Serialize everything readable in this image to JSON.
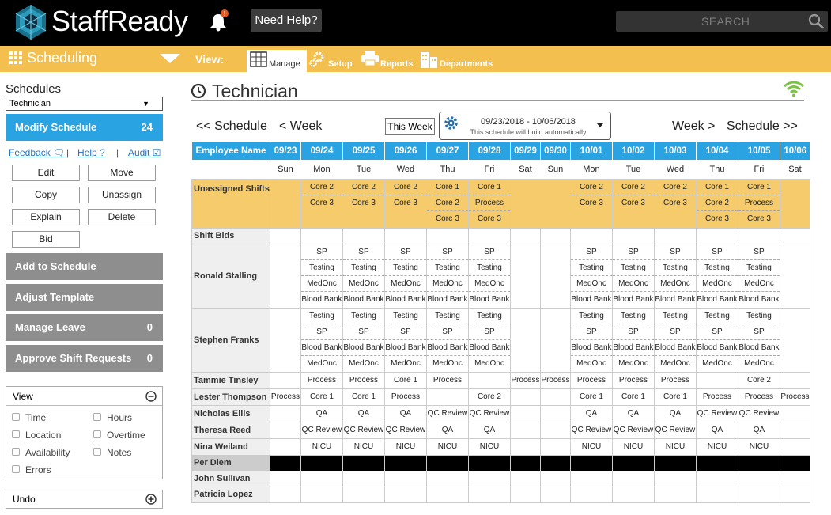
{
  "topbar": {
    "brand": "StaffReady",
    "help_label": "Need Help?",
    "search_placeholder": "SEARCH"
  },
  "nav": {
    "section_title": "Scheduling",
    "view_label": "View:",
    "tabs": [
      {
        "label": "Manage"
      },
      {
        "label": "Setup"
      },
      {
        "label": "Reports"
      },
      {
        "label": "Departments"
      }
    ]
  },
  "sidebar": {
    "title": "Schedules",
    "selected_schedule": "Technician",
    "modify": {
      "label": "Modify Schedule",
      "count": "24"
    },
    "links": {
      "feedback": "Feedback",
      "help": "Help",
      "audit": "Audit"
    },
    "actions": {
      "edit": "Edit",
      "move": "Move",
      "copy": "Copy",
      "unassign": "Unassign",
      "explain": "Explain",
      "delete": "Delete",
      "bid": "Bid"
    },
    "add_to_schedule": "Add to Schedule",
    "adjust_template": "Adjust Template",
    "manage_leave": {
      "label": "Manage Leave",
      "count": "0"
    },
    "approve_requests": {
      "label": "Approve Shift Requests",
      "count": "0"
    },
    "view_panel": {
      "title": "View",
      "options": [
        "Time",
        "Hours",
        "Location",
        "Overtime",
        "Availability",
        "Notes",
        "Errors"
      ]
    },
    "undo_panel": {
      "title": "Undo"
    }
  },
  "main": {
    "title": "Technician",
    "nav": {
      "prev_schedule": "<< Schedule",
      "prev_week": "< Week",
      "this_week": "This Week",
      "next_week": "Week >",
      "next_schedule": "Schedule >>"
    },
    "date_range": "09/23/2018 - 10/06/2018",
    "date_range_note": "This schedule will build automatically",
    "grid": {
      "name_header": "Employee Name",
      "dates": [
        "09/23",
        "09/24",
        "09/25",
        "09/26",
        "09/27",
        "09/28",
        "09/29",
        "09/30",
        "10/01",
        "10/02",
        "10/03",
        "10/04",
        "10/05",
        "10/06"
      ],
      "days": [
        "Sun",
        "Mon",
        "Tue",
        "Wed",
        "Thu",
        "Fri",
        "Sat",
        "Sun",
        "Mon",
        "Tue",
        "Wed",
        "Thu",
        "Fri",
        "Sat"
      ],
      "rows": [
        {
          "name": "Unassigned Shifts",
          "cells": [
            [],
            [
              "Core 2",
              "Core 3"
            ],
            [
              "Core 2",
              "Core 3"
            ],
            [
              "Core 2",
              "Core 3"
            ],
            [
              "Core 1",
              "Core 2",
              "Core 3"
            ],
            [
              "Core 1",
              "Process",
              "Core 3"
            ],
            [],
            [],
            [
              "Core 2",
              "Core 3"
            ],
            [
              "Core 2",
              "Core 3"
            ],
            [
              "Core 2",
              "Core 3"
            ],
            [
              "Core 1",
              "Core 2",
              "Core 3"
            ],
            [
              "Core 1",
              "Process",
              "Core 3"
            ],
            []
          ]
        },
        {
          "name": "Shift Bids",
          "cells": [
            [],
            [],
            [],
            [],
            [],
            [],
            [],
            [],
            [],
            [],
            [],
            [],
            [],
            []
          ]
        },
        {
          "name": "Ronald Stalling",
          "cells": [
            [],
            [
              "SP",
              "Testing",
              "MedOnc",
              "Blood Bank"
            ],
            [
              "SP",
              "Testing",
              "MedOnc",
              "Blood Bank"
            ],
            [
              "SP",
              "Testing",
              "MedOnc",
              "Blood Bank"
            ],
            [
              "SP",
              "Testing",
              "MedOnc",
              "Blood Bank"
            ],
            [
              "SP",
              "Testing",
              "MedOnc",
              "Blood Bank"
            ],
            [],
            [],
            [
              "SP",
              "Testing",
              "MedOnc",
              "Blood Bank"
            ],
            [
              "SP",
              "Testing",
              "MedOnc",
              "Blood Bank"
            ],
            [
              "SP",
              "Testing",
              "MedOnc",
              "Blood Bank"
            ],
            [
              "SP",
              "Testing",
              "MedOnc",
              "Blood Bank"
            ],
            [
              "SP",
              "Testing",
              "MedOnc",
              "Blood Bank"
            ],
            []
          ]
        },
        {
          "name": "Stephen Franks",
          "cells": [
            [],
            [
              "Testing",
              "SP",
              "Blood Bank",
              "MedOnc"
            ],
            [
              "Testing",
              "SP",
              "Blood Bank",
              "MedOnc"
            ],
            [
              "Testing",
              "SP",
              "Blood Bank",
              "MedOnc"
            ],
            [
              "Testing",
              "SP",
              "Blood Bank",
              "MedOnc"
            ],
            [
              "Testing",
              "SP",
              "Blood Bank",
              "MedOnc"
            ],
            [],
            [],
            [
              "Testing",
              "SP",
              "Blood Bank",
              "MedOnc"
            ],
            [
              "Testing",
              "SP",
              "Blood Bank",
              "MedOnc"
            ],
            [
              "Testing",
              "SP",
              "Blood Bank",
              "MedOnc"
            ],
            [
              "Testing",
              "SP",
              "Blood Bank",
              "MedOnc"
            ],
            [
              "Testing",
              "SP",
              "Blood Bank",
              "MedOnc"
            ],
            []
          ]
        },
        {
          "name": "Tammie Tinsley",
          "cells": [
            [],
            [
              "Process"
            ],
            [
              "Process"
            ],
            [
              "Core 1"
            ],
            [
              "Process"
            ],
            [],
            [
              "Process"
            ],
            [
              "Process"
            ],
            [
              "Process"
            ],
            [
              "Process"
            ],
            [
              "Process"
            ],
            [],
            [
              "Core 2"
            ],
            []
          ]
        },
        {
          "name": "Lester Thompson",
          "cells": [
            [
              "Process"
            ],
            [
              "Core 1"
            ],
            [
              "Core 1"
            ],
            [
              "Process"
            ],
            [],
            [
              "Core 2"
            ],
            [],
            [],
            [
              "Core 1"
            ],
            [
              "Core 1"
            ],
            [
              "Core 1"
            ],
            [
              "Process"
            ],
            [
              "Process"
            ],
            [
              "Process"
            ]
          ]
        },
        {
          "name": "Nicholas Ellis",
          "cells": [
            [],
            [
              "QA"
            ],
            [
              "QA"
            ],
            [
              "QA"
            ],
            [
              "QC Review"
            ],
            [
              "QC Review"
            ],
            [],
            [],
            [
              "QA"
            ],
            [
              "QA"
            ],
            [
              "QA"
            ],
            [
              "QC Review"
            ],
            [
              "QC Review"
            ],
            []
          ]
        },
        {
          "name": "Theresa Reed",
          "cells": [
            [],
            [
              "QC Review"
            ],
            [
              "QC Review"
            ],
            [
              "QC Review"
            ],
            [
              "QA"
            ],
            [
              "QA"
            ],
            [],
            [],
            [
              "QC Review"
            ],
            [
              "QC Review"
            ],
            [
              "QC Review"
            ],
            [
              "QA"
            ],
            [
              "QA"
            ],
            []
          ]
        },
        {
          "name": "Nina Weiland",
          "cells": [
            [],
            [
              "NICU"
            ],
            [
              "NICU"
            ],
            [
              "NICU"
            ],
            [
              "NICU"
            ],
            [
              "NICU"
            ],
            [],
            [],
            [
              "NICU"
            ],
            [
              "NICU"
            ],
            [
              "NICU"
            ],
            [
              "NICU"
            ],
            [
              "NICU"
            ],
            []
          ]
        },
        {
          "name": "Per Diem",
          "cells": [
            [],
            [],
            [],
            [],
            [],
            [],
            [],
            [],
            [],
            [],
            [],
            [],
            [],
            []
          ]
        },
        {
          "name": "John Sullivan",
          "cells": [
            [],
            [],
            [],
            [],
            [],
            [],
            [],
            [],
            [],
            [],
            [],
            [],
            [],
            []
          ]
        },
        {
          "name": "Patricia Lopez",
          "cells": [
            [],
            [],
            [],
            [],
            [],
            [],
            [],
            [],
            [],
            [],
            [],
            [],
            [],
            []
          ]
        }
      ]
    }
  },
  "colors": {
    "header_bg": "#000000",
    "nav_bg": "#f3c050",
    "accent_blue": "#2aa3e2",
    "unassigned_bg": "#f5cb6b",
    "grey_button": "#8e8e8e",
    "wifi_green": "#7cc242"
  }
}
